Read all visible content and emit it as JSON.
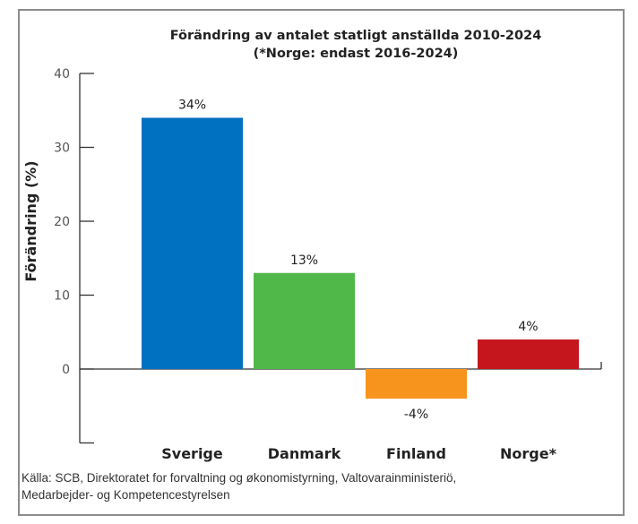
{
  "chart_data": {
    "type": "bar",
    "title": "Förändring av antalet statligt anställda 2010-2024",
    "subtitle": "(*Norge: endast 2016-2024)",
    "xlabel": "",
    "ylabel": "Förändring (%)",
    "ylim": [
      -10,
      40
    ],
    "yticks": [
      0,
      10,
      20,
      30,
      40
    ],
    "grid": false,
    "categories": [
      "Sverige",
      "Danmark",
      "Finland",
      "Norge*"
    ],
    "values": [
      34,
      13,
      -4,
      4
    ],
    "data_labels": [
      "34%",
      "13%",
      "-4%",
      "4%"
    ],
    "colors": [
      "#0070c0",
      "#50b848",
      "#f7941d",
      "#c4161c"
    ]
  },
  "source": {
    "line1": "Källa: SCB, Direktoratet for forvaltning og økonomistyrning, Valtovarainministeriö,",
    "line2": "Medarbejder- og Kompetencestyrelsen"
  }
}
